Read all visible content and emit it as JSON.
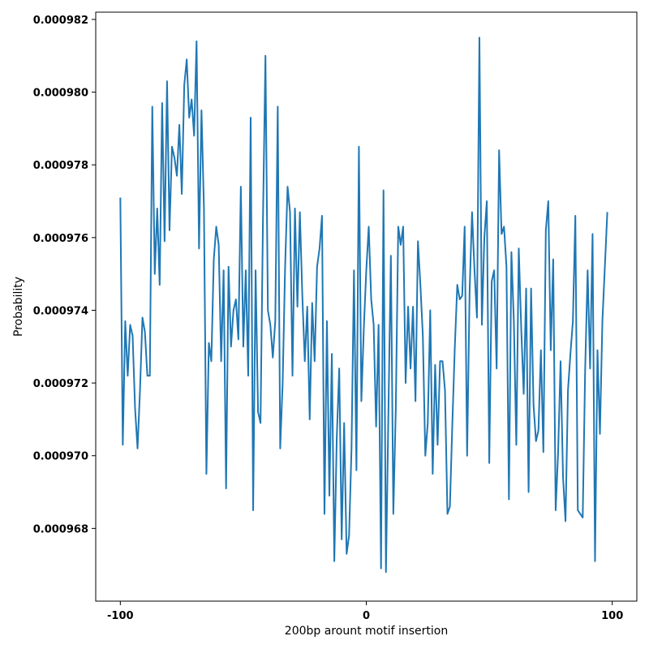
{
  "chart_data": {
    "type": "line",
    "title": "",
    "xlabel": "200bp arount motif insertion",
    "ylabel": "Probability",
    "xlim": [
      -110,
      110
    ],
    "ylim": [
      0.000966,
      0.0009822
    ],
    "xticks": [
      -100,
      0,
      100
    ],
    "xtick_labels": [
      "-100",
      "0",
      "100"
    ],
    "yticks": [
      0.000968,
      0.00097,
      0.000972,
      0.000974,
      0.000976,
      0.000978,
      0.00098,
      0.000982
    ],
    "ytick_labels": [
      "0.000968",
      "0.000970",
      "0.000972",
      "0.000974",
      "0.000976",
      "0.000978",
      "0.000980",
      "0.000982"
    ],
    "grid": false,
    "line_color": "#1f77b4",
    "series": [
      {
        "x_start": -100,
        "x_step": 1,
        "values": [
          0.0009771,
          0.0009703,
          0.0009737,
          0.0009722,
          0.0009736,
          0.0009733,
          0.0009713,
          0.0009702,
          0.0009718,
          0.0009738,
          0.0009734,
          0.0009722,
          0.0009722,
          0.0009796,
          0.000975,
          0.0009768,
          0.0009747,
          0.0009797,
          0.0009759,
          0.0009803,
          0.0009762,
          0.0009785,
          0.0009782,
          0.0009777,
          0.0009791,
          0.0009772,
          0.0009802,
          0.0009809,
          0.0009793,
          0.0009798,
          0.0009788,
          0.0009814,
          0.0009757,
          0.0009795,
          0.0009768,
          0.0009695,
          0.0009731,
          0.0009726,
          0.0009754,
          0.0009763,
          0.0009758,
          0.0009726,
          0.0009751,
          0.0009691,
          0.0009752,
          0.000973,
          0.000974,
          0.0009743,
          0.0009732,
          0.0009774,
          0.000973,
          0.0009751,
          0.0009722,
          0.0009793,
          0.0009685,
          0.0009751,
          0.0009712,
          0.0009709,
          0.0009765,
          0.000981,
          0.000974,
          0.0009736,
          0.0009727,
          0.0009737,
          0.0009796,
          0.0009702,
          0.000972,
          0.0009752,
          0.0009774,
          0.0009767,
          0.0009722,
          0.0009768,
          0.0009741,
          0.0009767,
          0.0009744,
          0.0009726,
          0.0009741,
          0.000971,
          0.0009742,
          0.0009726,
          0.0009752,
          0.0009757,
          0.0009766,
          0.0009684,
          0.0009737,
          0.0009689,
          0.0009728,
          0.0009671,
          0.0009705,
          0.0009724,
          0.0009677,
          0.0009709,
          0.0009673,
          0.0009678,
          0.0009702,
          0.0009751,
          0.0009696,
          0.0009785,
          0.0009715,
          0.0009735,
          0.0009751,
          0.0009763,
          0.0009743,
          0.0009736,
          0.0009708,
          0.0009736,
          0.0009669,
          0.0009773,
          0.0009668,
          0.0009712,
          0.0009755,
          0.0009684,
          0.0009713,
          0.0009763,
          0.0009758,
          0.0009763,
          0.000972,
          0.0009741,
          0.0009724,
          0.0009741,
          0.0009715,
          0.0009759,
          0.0009747,
          0.0009733,
          0.00097,
          0.0009709,
          0.000974,
          0.0009695,
          0.0009725,
          0.0009703,
          0.0009726,
          0.0009726,
          0.0009718,
          0.0009684,
          0.0009686,
          0.0009709,
          0.000973,
          0.0009747,
          0.0009743,
          0.0009744,
          0.0009763,
          0.00097,
          0.0009745,
          0.0009767,
          0.0009751,
          0.0009738,
          0.0009815,
          0.0009736,
          0.000976,
          0.000977,
          0.0009698,
          0.0009748,
          0.0009751,
          0.0009724,
          0.0009784,
          0.0009761,
          0.0009763,
          0.0009752,
          0.0009688,
          0.0009756,
          0.0009737,
          0.0009703,
          0.0009757,
          0.0009735,
          0.0009717,
          0.0009746,
          0.000969,
          0.0009746,
          0.0009714,
          0.0009704,
          0.0009707,
          0.0009729,
          0.0009701,
          0.0009762,
          0.000977,
          0.0009729,
          0.0009754,
          0.0009685,
          0.0009701,
          0.0009726,
          0.0009694,
          0.0009682,
          0.0009718,
          0.0009728,
          0.0009737,
          0.0009766,
          0.0009685,
          0.0009684,
          0.0009683,
          0.0009724,
          0.0009751,
          0.0009724,
          0.0009761,
          0.0009671,
          0.0009729,
          0.0009706,
          0.0009737,
          0.0009752,
          0.0009767
        ]
      }
    ]
  }
}
